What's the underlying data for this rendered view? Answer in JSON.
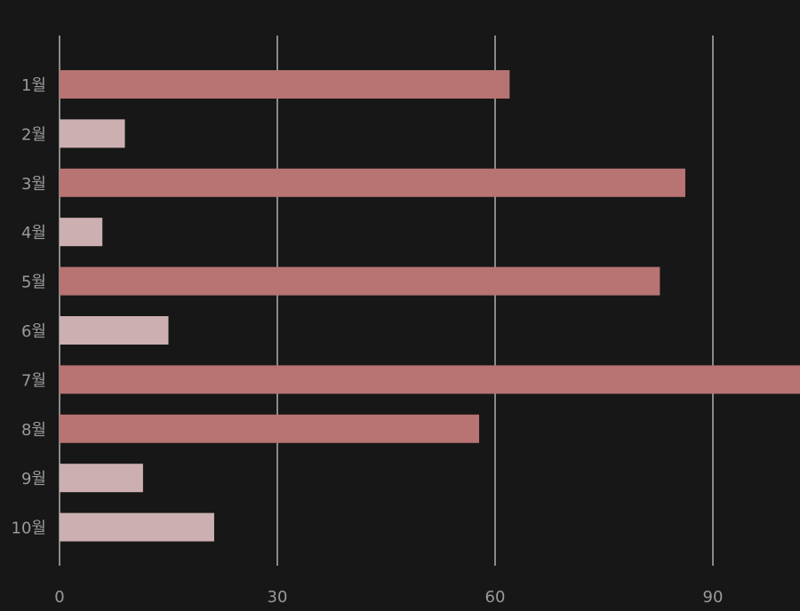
{
  "chart_data": {
    "type": "bar",
    "orientation": "horizontal",
    "categories": [
      "1월",
      "2월",
      "3월",
      "4월",
      "5월",
      "6월",
      "7월",
      "8월",
      "9월",
      "10월"
    ],
    "values": [
      62,
      9,
      86.2,
      5.9,
      82.7,
      15,
      102,
      57.8,
      11.5,
      21.3
    ],
    "xlim": [
      0,
      102
    ],
    "xticks": [
      "0",
      "30",
      "60",
      "90"
    ],
    "grid": true,
    "colors": {
      "background": "#171717",
      "bar_high": "#b87373",
      "bar_low": "#ccafb1",
      "grid": "#8a8a8a",
      "text": "#9a9a9a"
    },
    "highlight_threshold": 30
  }
}
